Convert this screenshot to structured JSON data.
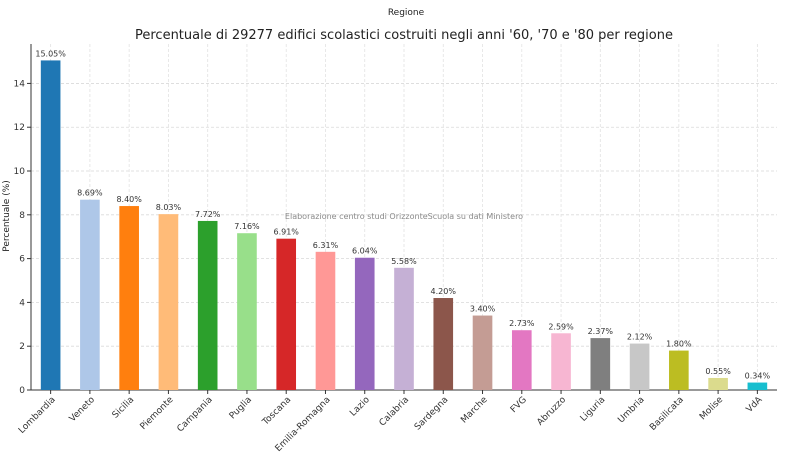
{
  "top_label": "Regione",
  "chart_data": {
    "type": "bar",
    "title": "Percentuale di 29277 edifici scolastici costruiti negli anni '60, '70 e '80 per regione",
    "xlabel": "",
    "ylabel": "Percentuale (%)",
    "ylim": [
      0,
      15.8
    ],
    "yticks": [
      0,
      2,
      4,
      6,
      8,
      10,
      12,
      14
    ],
    "grid": true,
    "annotation": "Elaborazione centro studi OrizzonteScuola su dati Ministero",
    "categories": [
      "Lombardia",
      "Veneto",
      "Sicilia",
      "Piemonte",
      "Campania",
      "Puglia",
      "Toscana",
      "Emilia-Romagna",
      "Lazio",
      "Calabria",
      "Sardegna",
      "Marche",
      "FVG",
      "Abruzzo",
      "Liguria",
      "Umbria",
      "Basilicata",
      "Molise",
      "VdA"
    ],
    "values": [
      15.05,
      8.69,
      8.4,
      8.03,
      7.72,
      7.16,
      6.91,
      6.31,
      6.04,
      5.58,
      4.2,
      3.4,
      2.73,
      2.59,
      2.37,
      2.12,
      1.8,
      0.55,
      0.34
    ],
    "value_labels": [
      "15.05%",
      "8.69%",
      "8.40%",
      "8.03%",
      "7.72%",
      "7.16%",
      "6.91%",
      "6.31%",
      "6.04%",
      "5.58%",
      "4.20%",
      "3.40%",
      "2.73%",
      "2.59%",
      "2.37%",
      "2.12%",
      "1.80%",
      "0.55%",
      "0.34%"
    ],
    "colors": [
      "#1f77b4",
      "#aec7e8",
      "#ff7f0e",
      "#ffbb78",
      "#2ca02c",
      "#98df8a",
      "#d62728",
      "#ff9896",
      "#9467bd",
      "#c5b0d5",
      "#8c564b",
      "#c49c94",
      "#e377c2",
      "#f7b6d2",
      "#7f7f7f",
      "#c7c7c7",
      "#bcbd22",
      "#dbdb8d",
      "#17becf"
    ]
  }
}
